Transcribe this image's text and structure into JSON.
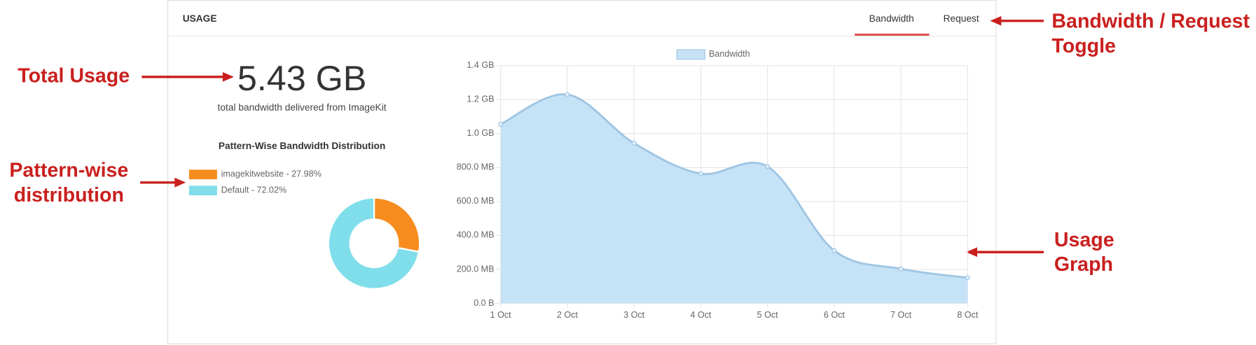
{
  "header": {
    "title": "USAGE",
    "tabs": [
      "Bandwidth",
      "Request"
    ]
  },
  "summary": {
    "total": "5.43 GB",
    "caption": "total bandwidth delivered from ImageKit"
  },
  "annotations": [
    {
      "lines": [
        "Total Usage"
      ]
    },
    {
      "lines": [
        "Pattern-wise",
        "distribution"
      ]
    },
    {
      "lines": [
        "Bandwidth / Request",
        "Toggle"
      ]
    },
    {
      "lines": [
        "Usage",
        "Graph"
      ]
    }
  ],
  "chart_data": [
    {
      "type": "donut",
      "title": "Pattern-Wise Bandwidth Distribution",
      "categories": [
        "imagekitwebsite - 27.98%",
        "Default - 72.02%"
      ],
      "values": [
        27.98,
        72.02
      ],
      "colors": [
        "#f68c1e",
        "#80deea"
      ]
    },
    {
      "type": "area",
      "categories": [
        "1 Oct",
        "2 Oct",
        "3 Oct",
        "4 Oct",
        "5 Oct",
        "6 Oct",
        "7 Oct",
        "8 Oct"
      ],
      "series": [
        {
          "name": "Bandwidth",
          "color": "#c6e2f7",
          "line_color": "#9fc5e3",
          "values": [
            1055,
            1230,
            943,
            764,
            806,
            311,
            203,
            151
          ]
        }
      ],
      "ylim": [
        0,
        1400
      ],
      "yticks": [
        {
          "value": 0,
          "label": "0.0 B"
        },
        {
          "value": 200,
          "label": "200.0 MB"
        },
        {
          "value": 400,
          "label": "400.0 MB"
        },
        {
          "value": 600,
          "label": "600.0 MB"
        },
        {
          "value": 800,
          "label": "800.0 MB"
        },
        {
          "value": 1000,
          "label": "1.0 GB"
        },
        {
          "value": 1200,
          "label": "1.2 GB"
        },
        {
          "value": 1400,
          "label": "1.4 GB"
        }
      ],
      "grid": true
    }
  ]
}
